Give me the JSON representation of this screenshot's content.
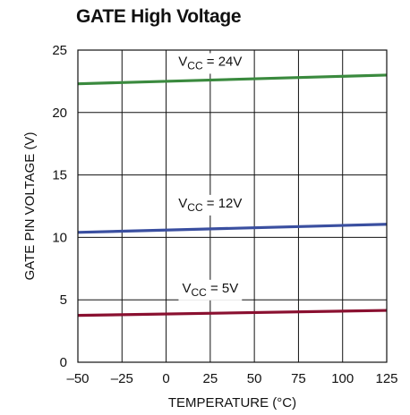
{
  "chart_data": {
    "type": "line",
    "title": "GATE High Voltage",
    "xlabel": "TEMPERATURE (°C)",
    "ylabel": "GATE PIN VOLTAGE (V)",
    "xlim": [
      -50,
      125
    ],
    "ylim": [
      0,
      25
    ],
    "x_ticks": [
      -50,
      -25,
      0,
      25,
      50,
      75,
      100,
      125
    ],
    "y_ticks": [
      0,
      5,
      10,
      15,
      20,
      25
    ],
    "x_tick_labels": [
      "–50",
      "–25",
      "0",
      "25",
      "50",
      "75",
      "100",
      "125"
    ],
    "y_tick_labels": [
      "0",
      "5",
      "10",
      "15",
      "20",
      "25"
    ],
    "grid": true,
    "series": [
      {
        "label_main": "V",
        "label_sub": "CC",
        "label_rest": " = 24V",
        "color": "#3a8a3e",
        "x": [
          -50,
          125
        ],
        "y": [
          22.3,
          23.0
        ],
        "label_at": [
          25,
          23.75
        ]
      },
      {
        "label_main": "V",
        "label_sub": "CC",
        "label_rest": " = 12V",
        "color": "#3a4fa0",
        "x": [
          -50,
          125
        ],
        "y": [
          10.4,
          11.05
        ],
        "label_at": [
          25,
          12.4
        ]
      },
      {
        "label_main": "V",
        "label_sub": "CC",
        "label_rest": " = 5V",
        "color": "#8a1030",
        "x": [
          -50,
          125
        ],
        "y": [
          3.75,
          4.15
        ],
        "label_at": [
          25,
          5.6
        ]
      }
    ]
  }
}
